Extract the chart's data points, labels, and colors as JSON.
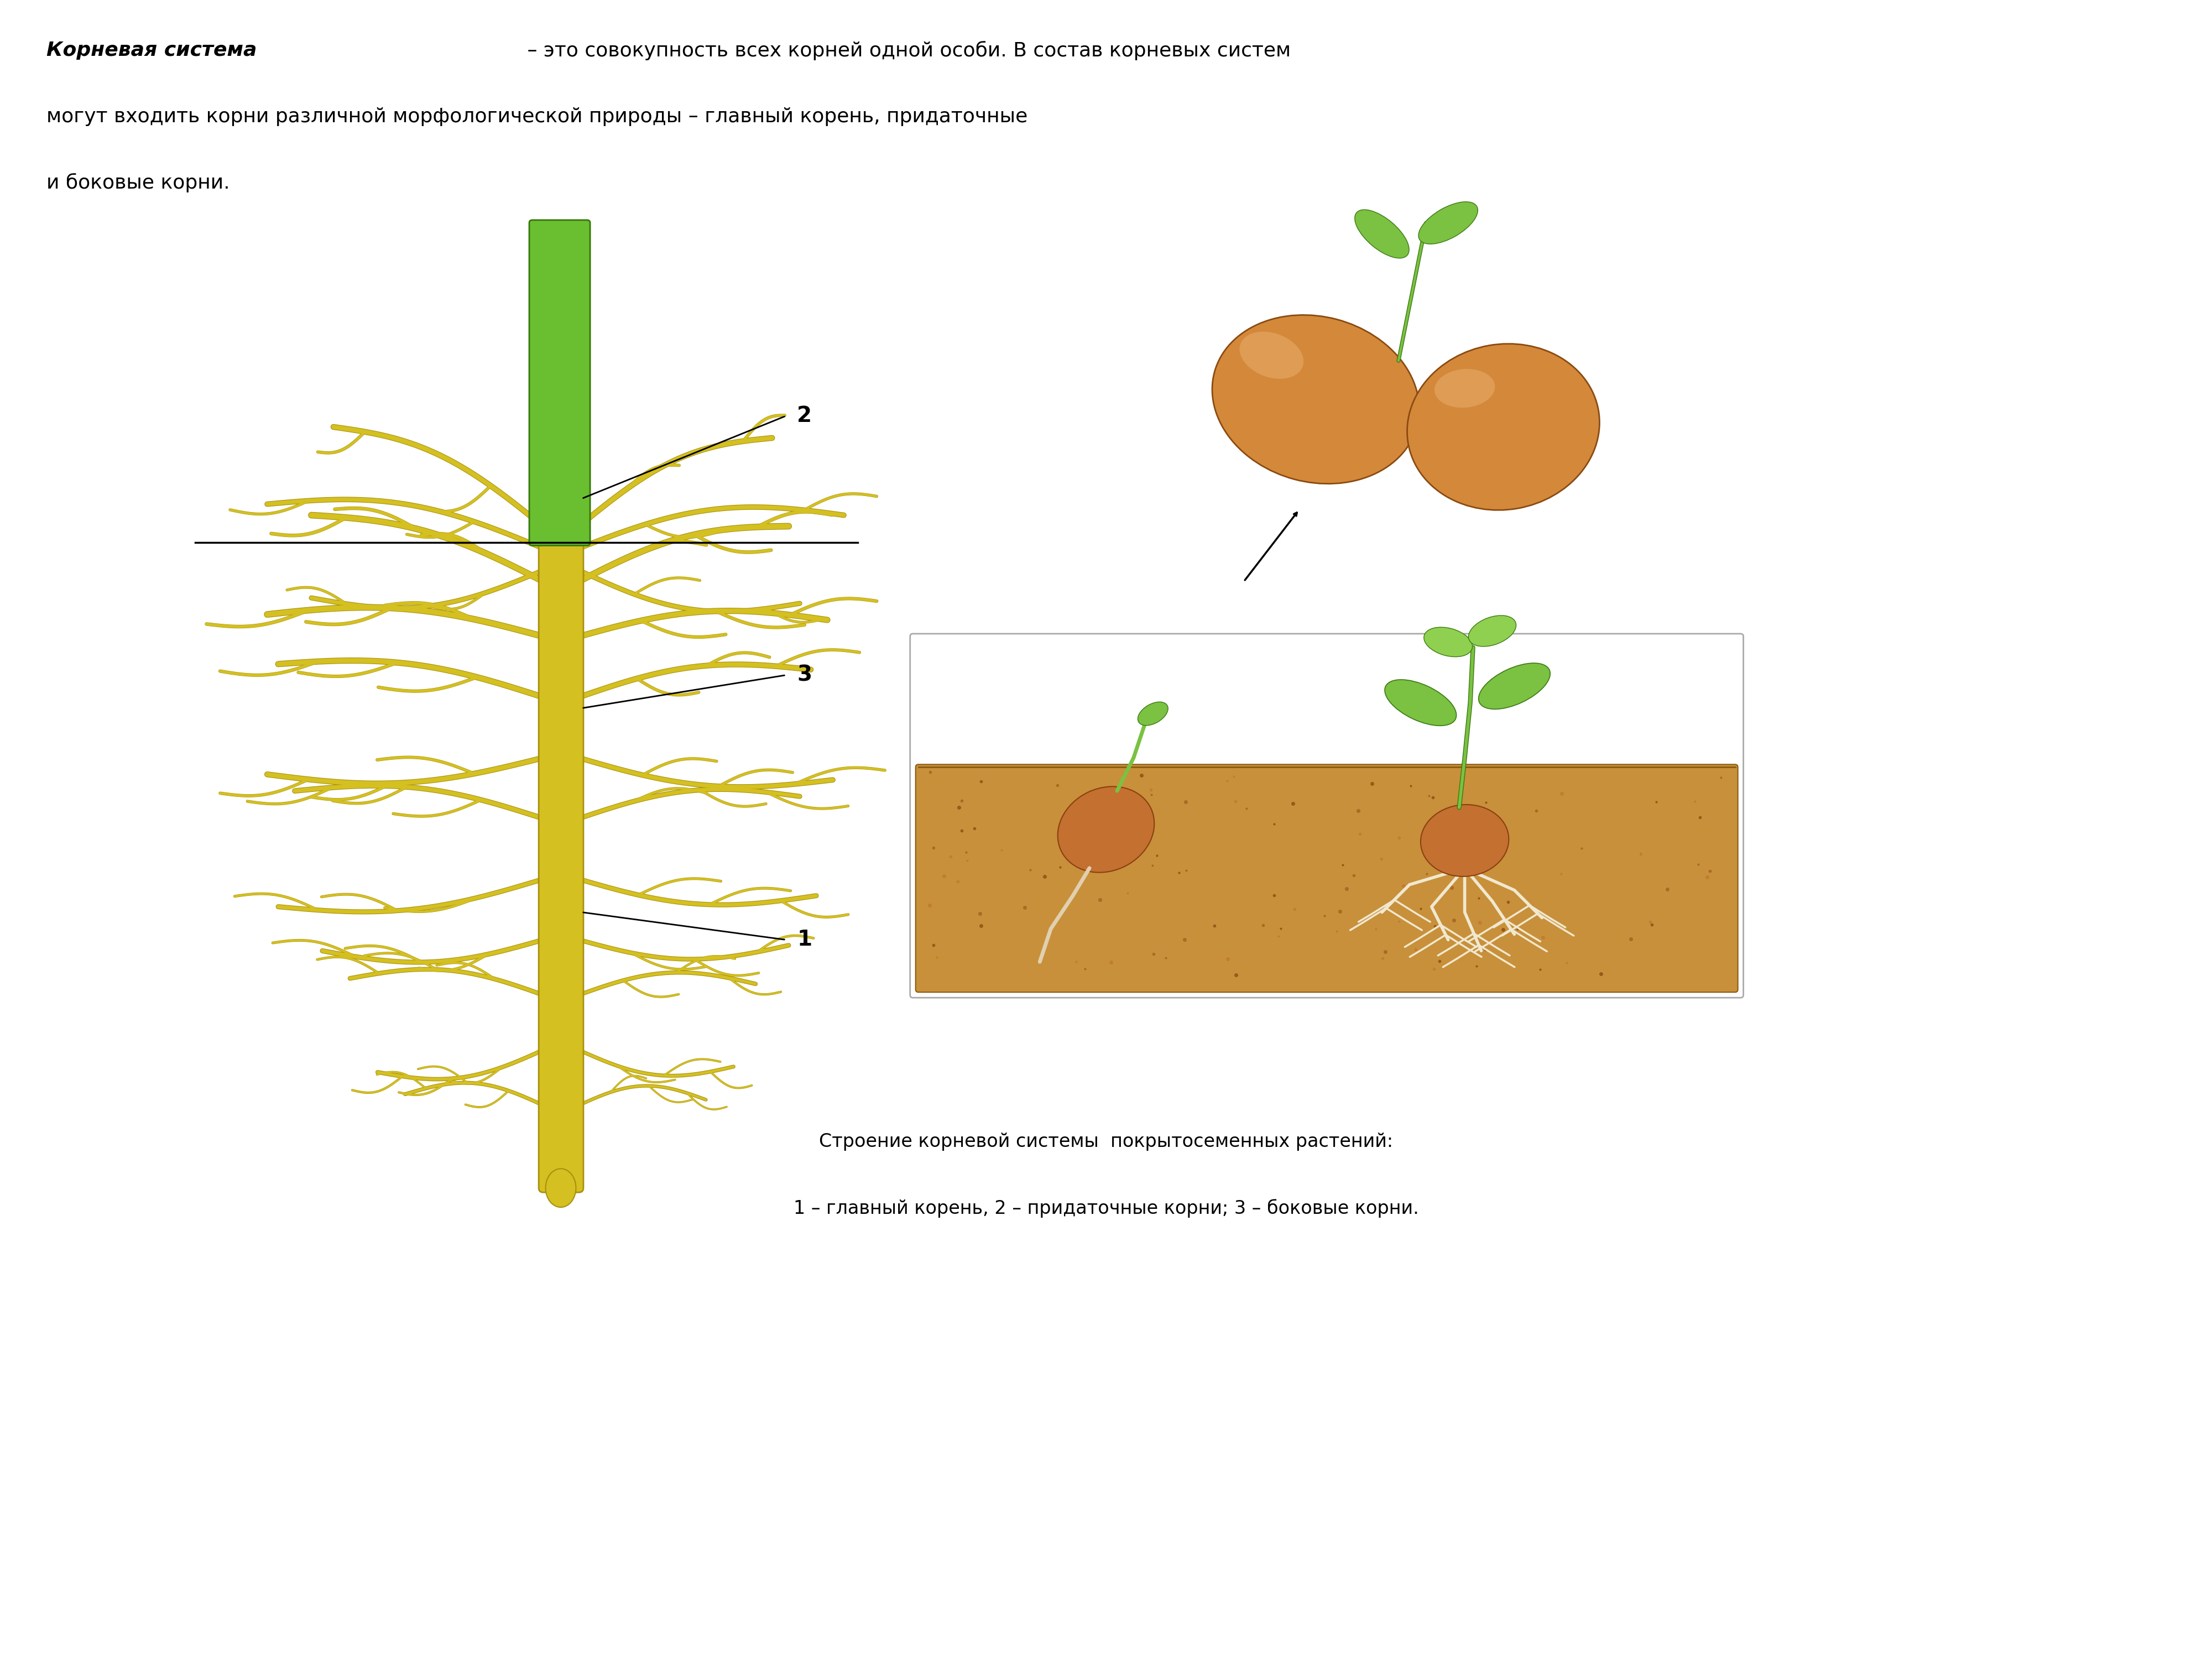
{
  "background_color": "#ffffff",
  "title_bold_part": "Корневая система",
  "title_regular_part": " – это совокупность всех корней одной особи. В состав корневых систем",
  "title_line2": "могут входить корни различной морфологической природы – главный корень, придаточные",
  "title_line3": "и боковые корни.",
  "caption_line1": "Строение корневой системы  покрытосеменных растений:",
  "caption_line2": "1 – главный корень, 2 – придаточные корни; 3 – боковые корни.",
  "label_1": "1",
  "label_2": "2",
  "label_3": "3",
  "stem_color": "#6abf30",
  "stem_edge": "#3a7a10",
  "taproot_color": "#d4c020",
  "taproot_dark": "#a89010",
  "seed_color": "#d4883a",
  "seed_dark": "#8a4a10",
  "ground_color": "#c8903a",
  "ground_dark": "#8a5a10",
  "leaf_color": "#7bc142",
  "leaf_dark": "#3a7a10",
  "text_fontsize": 26,
  "caption_fontsize": 24,
  "label_fontsize": 28
}
